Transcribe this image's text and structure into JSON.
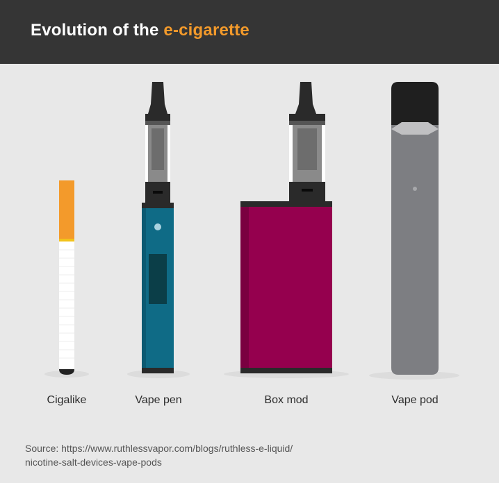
{
  "header": {
    "title_prefix": "Evolution of the ",
    "title_highlight": "e-cigarette",
    "highlight_color": "#f39a2b",
    "background": "#353535"
  },
  "devices": [
    {
      "label": "Cigalike",
      "icon": "cigalike-icon",
      "color": "#f39a2b"
    },
    {
      "label": "Vape pen",
      "icon": "vape-pen-icon",
      "color": "#0f6b86"
    },
    {
      "label": "Box mod",
      "icon": "box-mod-icon",
      "color": "#95004e"
    },
    {
      "label": "Vape pod",
      "icon": "vape-pod-icon",
      "color": "#7d7e82"
    }
  ],
  "source": {
    "line1": "Source: https://www.ruthlessvapor.com/blogs/ruthless-e-liquid/",
    "line2": "nicotine-salt-devices-vape-pods"
  }
}
